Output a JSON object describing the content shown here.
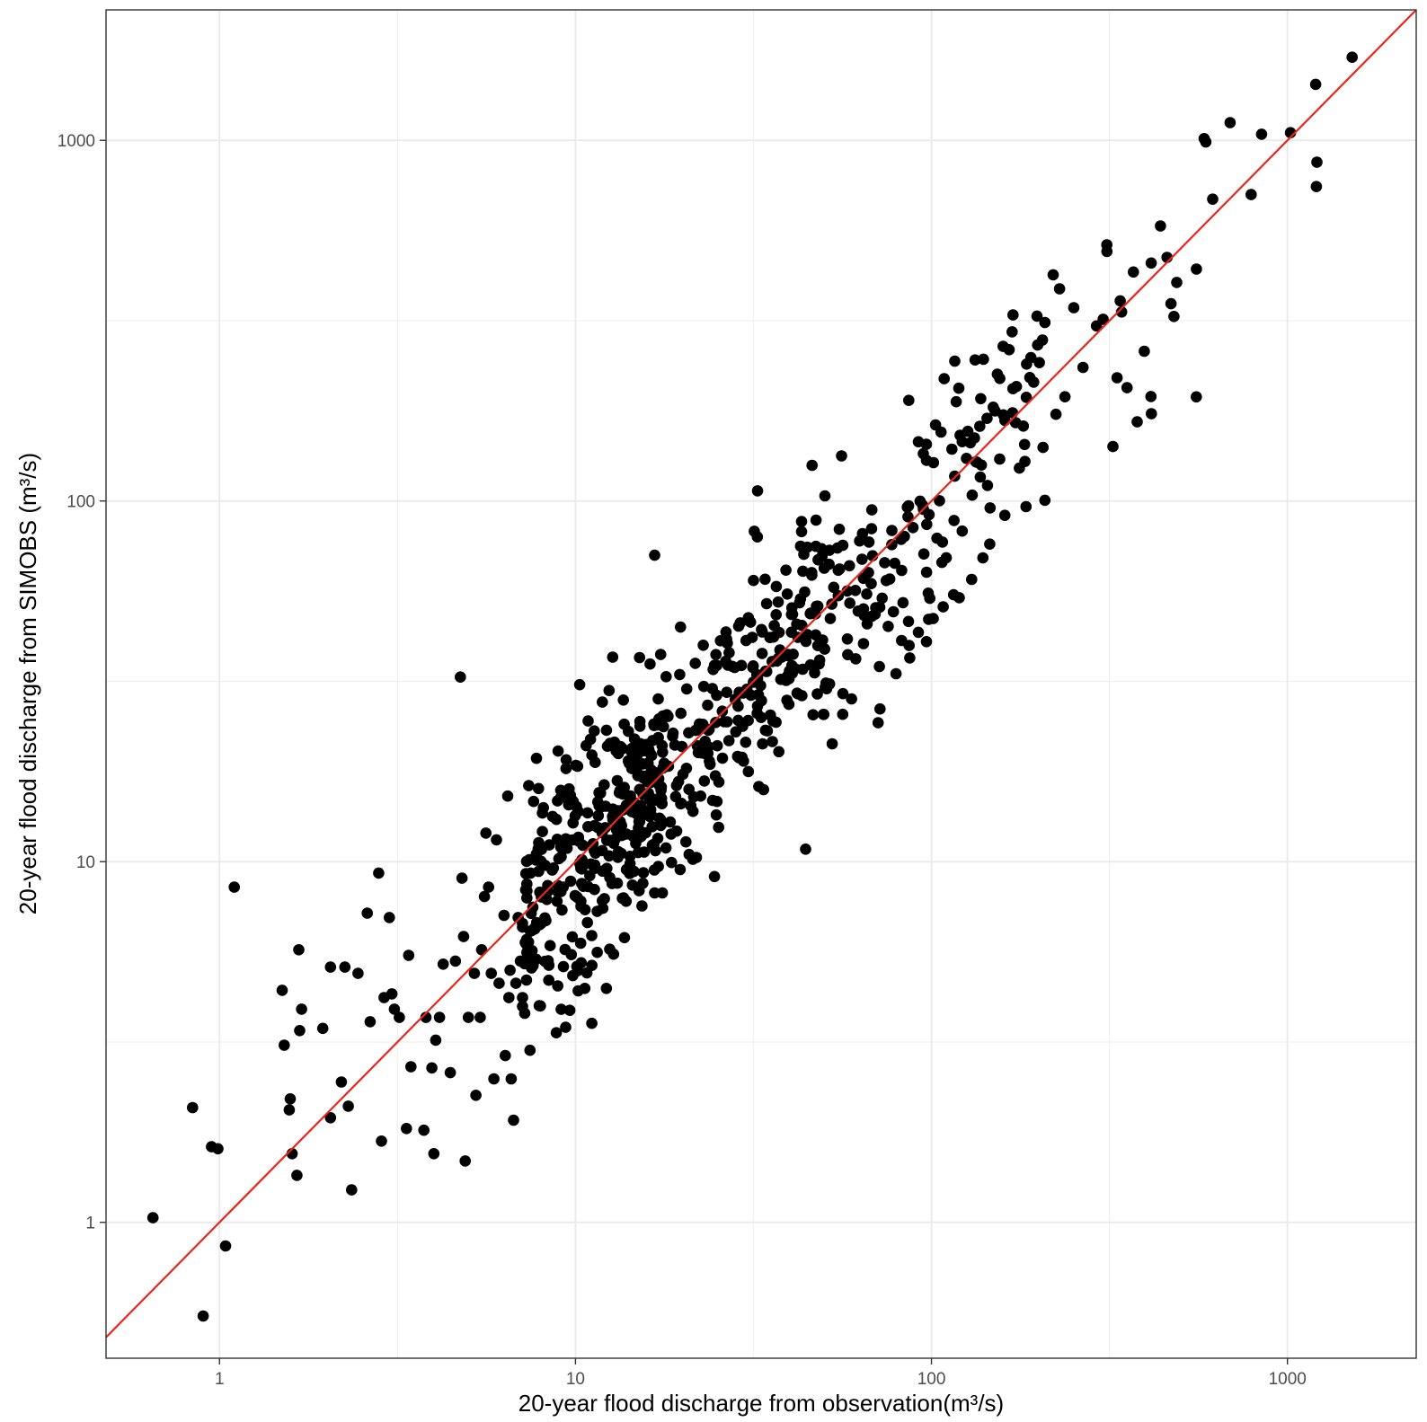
{
  "chart_data": {
    "type": "scatter",
    "title": "",
    "xlabel": "20-year flood discharge from observation(m³/s)",
    "ylabel": "20-year flood discharge from SIMOBS (m³/s)",
    "xscale": "log",
    "yscale": "log",
    "xlim": [
      0.48,
      2300
    ],
    "ylim": [
      0.42,
      2300
    ],
    "x_ticks": [
      1,
      10,
      100,
      1000
    ],
    "x_tick_labels": [
      "1",
      "10",
      "100",
      "1000"
    ],
    "y_ticks": [
      1,
      10,
      100,
      1000
    ],
    "y_tick_labels": [
      "1",
      "10",
      "100",
      "1000"
    ],
    "grid": true,
    "theme": "bw",
    "point_color": "#000000",
    "reference_line": {
      "type": "1:1",
      "color": "#e8261c"
    },
    "points_fixed": [
      [
        0.65,
        1.03
      ],
      [
        0.84,
        2.08
      ],
      [
        0.9,
        0.55
      ],
      [
        0.95,
        1.62
      ],
      [
        0.99,
        1.6
      ],
      [
        1.04,
        0.86
      ],
      [
        1.1,
        8.5
      ],
      [
        1.5,
        4.4
      ],
      [
        1.52,
        3.1
      ],
      [
        1.57,
        2.05
      ],
      [
        1.58,
        2.2
      ],
      [
        1.6,
        1.55
      ],
      [
        1.65,
        1.35
      ],
      [
        1.67,
        5.7
      ],
      [
        1.7,
        3.9
      ],
      [
        1.68,
        3.4
      ],
      [
        1.95,
        3.45
      ],
      [
        2.05,
        5.1
      ],
      [
        2.05,
        1.95
      ],
      [
        2.2,
        2.45
      ],
      [
        2.25,
        5.1
      ],
      [
        2.3,
        2.1
      ],
      [
        2.35,
        1.23
      ],
      [
        2.45,
        4.9
      ],
      [
        2.6,
        7.2
      ],
      [
        2.65,
        3.6
      ],
      [
        2.8,
        9.3
      ],
      [
        2.85,
        1.68
      ],
      [
        2.9,
        4.2
      ],
      [
        3.0,
        7.0
      ],
      [
        3.05,
        4.3
      ],
      [
        3.1,
        3.9
      ],
      [
        3.2,
        3.7
      ],
      [
        3.35,
        1.82
      ],
      [
        3.4,
        5.5
      ],
      [
        3.45,
        2.7
      ],
      [
        3.75,
        1.8
      ],
      [
        3.8,
        3.7
      ],
      [
        3.95,
        2.68
      ],
      [
        4.0,
        1.55
      ],
      [
        4.05,
        3.2
      ],
      [
        4.15,
        3.7
      ],
      [
        4.25,
        5.2
      ],
      [
        4.45,
        2.6
      ],
      [
        4.6,
        5.3
      ],
      [
        4.75,
        32.5
      ],
      [
        4.8,
        9.0
      ],
      [
        4.85,
        6.2
      ],
      [
        4.9,
        1.48
      ],
      [
        5.0,
        3.7
      ],
      [
        5.2,
        4.9
      ],
      [
        5.25,
        2.25
      ],
      [
        5.4,
        3.7
      ],
      [
        5.45,
        5.7
      ],
      [
        5.55,
        8.0
      ],
      [
        5.6,
        12.0
      ],
      [
        5.7,
        8.5
      ],
      [
        5.8,
        4.9
      ],
      [
        5.9,
        2.5
      ],
      [
        6.0,
        11.5
      ],
      [
        6.1,
        4.6
      ],
      [
        6.3,
        7.1
      ],
      [
        6.35,
        2.9
      ],
      [
        6.45,
        15.2
      ],
      [
        6.5,
        4.2
      ],
      [
        6.55,
        5.0
      ],
      [
        6.6,
        2.5
      ],
      [
        6.7,
        1.92
      ],
      [
        6.8,
        4.6
      ],
      [
        6.9,
        7.0
      ],
      [
        7.0,
        5.3
      ],
      [
        7.1,
        4.2
      ],
      [
        7.2,
        3.8
      ],
      [
        7.3,
        5.6
      ],
      [
        7.45,
        3.0
      ]
    ],
    "point_count_generated": 760,
    "point_generation": "lognormal scatter around 1:1 line, seeded"
  }
}
